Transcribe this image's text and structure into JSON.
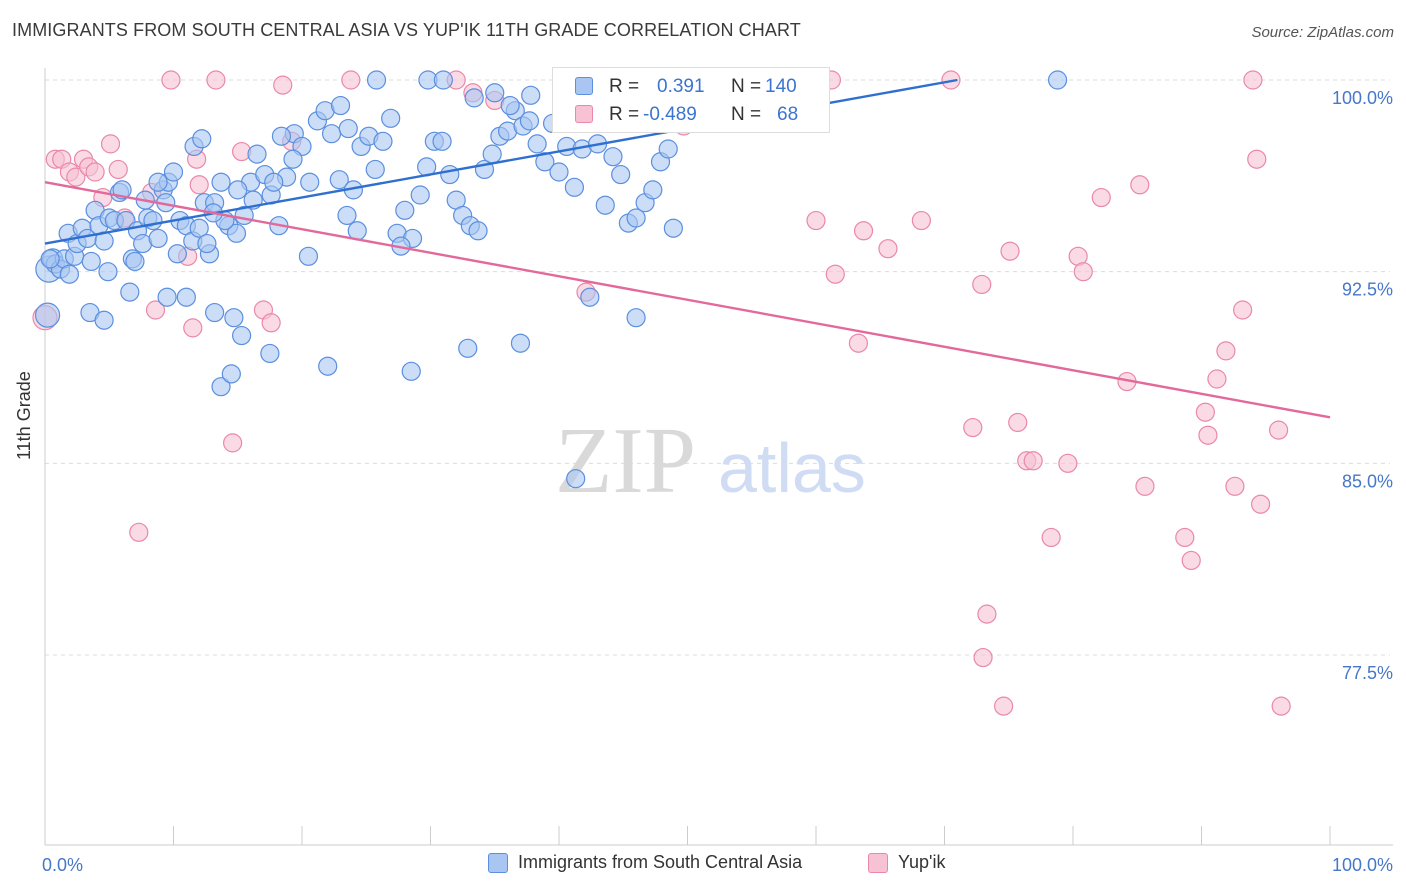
{
  "header": {
    "title": "IMMIGRANTS FROM SOUTH CENTRAL ASIA VS YUP'IK 11TH GRADE CORRELATION CHART",
    "source": "Source: ZipAtlas.com"
  },
  "watermark": {
    "zip": "ZIP",
    "atlas": "atlas"
  },
  "stats": {
    "rows": [
      {
        "r_label": "R =",
        "r_value": "0.391",
        "n_label": "N =",
        "n_value": "140",
        "color": "#6b9ee8"
      },
      {
        "r_label": "R =",
        "r_value": "-0.489",
        "n_label": "N =",
        "n_value": "68",
        "color": "#f29ab8"
      }
    ]
  },
  "colors": {
    "blue_fill": "#a9c6f2",
    "blue_stroke": "#5b8fdf",
    "blue_line": "#2f6fcf",
    "pink_fill": "#f7c2d4",
    "pink_stroke": "#ea88a9",
    "pink_line": "#e2699a",
    "tick_label": "#4677c9",
    "grid": "#dcdcdc"
  },
  "chart_data": {
    "type": "scatter",
    "title": "IMMIGRANTS FROM SOUTH CENTRAL ASIA VS YUP'IK 11TH GRADE CORRELATION CHART",
    "xlabel": "",
    "ylabel": "11th Grade",
    "xlim": [
      0,
      100
    ],
    "ylim": [
      70.2,
      100.6
    ],
    "x_tick_labels": [
      "0.0%",
      "100.0%"
    ],
    "y_ticks": [
      77.5,
      85.0,
      92.5,
      100.0
    ],
    "y_tick_labels": [
      "77.5%",
      "85.0%",
      "92.5%",
      "100.0%"
    ],
    "grid": "horizontal dashed",
    "legend": [
      "Immigrants from South Central Asia",
      "Yup'ik"
    ],
    "series": [
      {
        "name": "Immigrants from South Central Asia",
        "r": 0.391,
        "n": 140,
        "trend": {
          "x": [
            0,
            71
          ],
          "y": [
            93.6,
            100.0
          ]
        },
        "points": [
          [
            0.3,
            92.6
          ],
          [
            0.6,
            93.0
          ],
          [
            0.8,
            92.8
          ],
          [
            1.2,
            92.6
          ],
          [
            1.5,
            93.0
          ],
          [
            1.9,
            92.4
          ],
          [
            2.3,
            93.1
          ],
          [
            0.2,
            90.8
          ],
          [
            1.8,
            94.0
          ],
          [
            2.5,
            93.6
          ],
          [
            2.9,
            94.2
          ],
          [
            3.3,
            93.8
          ],
          [
            3.9,
            94.9
          ],
          [
            4.2,
            94.3
          ],
          [
            4.6,
            93.7
          ],
          [
            5.0,
            94.6
          ],
          [
            5.4,
            94.5
          ],
          [
            5.8,
            95.6
          ],
          [
            6.3,
            94.5
          ],
          [
            6.8,
            93.0
          ],
          [
            7.2,
            94.1
          ],
          [
            7.6,
            93.6
          ],
          [
            8.0,
            94.6
          ],
          [
            8.4,
            94.5
          ],
          [
            8.8,
            93.8
          ],
          [
            9.2,
            95.7
          ],
          [
            9.6,
            96.0
          ],
          [
            10.0,
            96.4
          ],
          [
            10.5,
            94.5
          ],
          [
            11.0,
            94.3
          ],
          [
            11.5,
            93.7
          ],
          [
            12.0,
            94.2
          ],
          [
            12.4,
            95.2
          ],
          [
            12.8,
            93.2
          ],
          [
            3.6,
            92.9
          ],
          [
            4.9,
            92.5
          ],
          [
            6.6,
            91.7
          ],
          [
            9.5,
            91.5
          ],
          [
            3.5,
            90.9
          ],
          [
            4.6,
            90.6
          ],
          [
            11.6,
            97.4
          ],
          [
            12.2,
            97.7
          ],
          [
            13.2,
            95.2
          ],
          [
            13.7,
            96.0
          ],
          [
            14.3,
            94.3
          ],
          [
            14.9,
            94.0
          ],
          [
            15.5,
            94.7
          ],
          [
            16.0,
            96.0
          ],
          [
            16.5,
            97.1
          ],
          [
            17.1,
            96.3
          ],
          [
            17.6,
            95.5
          ],
          [
            18.2,
            94.3
          ],
          [
            18.8,
            96.2
          ],
          [
            19.4,
            97.9
          ],
          [
            20.0,
            97.4
          ],
          [
            20.6,
            96.0
          ],
          [
            21.2,
            98.4
          ],
          [
            21.8,
            98.8
          ],
          [
            22.3,
            97.9
          ],
          [
            22.9,
            96.1
          ],
          [
            23.5,
            94.7
          ],
          [
            24.0,
            95.7
          ],
          [
            24.6,
            97.4
          ],
          [
            25.2,
            97.8
          ],
          [
            25.7,
            96.5
          ],
          [
            26.3,
            97.6
          ],
          [
            26.9,
            98.5
          ],
          [
            27.4,
            94.0
          ],
          [
            28.0,
            94.9
          ],
          [
            28.6,
            93.8
          ],
          [
            29.2,
            95.5
          ],
          [
            29.7,
            96.6
          ],
          [
            30.3,
            97.6
          ],
          [
            30.9,
            97.6
          ],
          [
            31.5,
            96.3
          ],
          [
            32.0,
            95.3
          ],
          [
            32.5,
            94.7
          ],
          [
            33.1,
            94.3
          ],
          [
            33.7,
            94.1
          ],
          [
            34.2,
            96.5
          ],
          [
            34.8,
            97.1
          ],
          [
            35.4,
            97.8
          ],
          [
            36.0,
            98.0
          ],
          [
            36.6,
            98.8
          ],
          [
            37.2,
            98.2
          ],
          [
            37.8,
            99.4
          ],
          [
            38.3,
            97.5
          ],
          [
            38.9,
            96.8
          ],
          [
            39.5,
            98.3
          ],
          [
            40.0,
            96.4
          ],
          [
            40.6,
            97.4
          ],
          [
            41.2,
            95.8
          ],
          [
            41.8,
            97.3
          ],
          [
            42.4,
            98.7
          ],
          [
            43.0,
            97.5
          ],
          [
            43.6,
            95.1
          ],
          [
            44.2,
            97.0
          ],
          [
            44.8,
            96.3
          ],
          [
            45.4,
            94.4
          ],
          [
            46.0,
            94.6
          ],
          [
            46.7,
            95.2
          ],
          [
            47.3,
            95.7
          ],
          [
            47.9,
            96.8
          ],
          [
            48.5,
            97.3
          ],
          [
            48.9,
            94.2
          ],
          [
            50.0,
            100.0
          ],
          [
            25.8,
            100.0
          ],
          [
            29.8,
            100.0
          ],
          [
            31.0,
            100.0
          ],
          [
            33.4,
            99.3
          ],
          [
            35.0,
            99.5
          ],
          [
            36.2,
            99.0
          ],
          [
            37.7,
            98.4
          ],
          [
            23.0,
            99.0
          ],
          [
            23.6,
            98.1
          ],
          [
            18.4,
            97.8
          ],
          [
            19.3,
            96.9
          ],
          [
            17.8,
            96.0
          ],
          [
            16.2,
            95.3
          ],
          [
            15.0,
            95.7
          ],
          [
            14.0,
            94.5
          ],
          [
            13.1,
            94.8
          ],
          [
            12.6,
            93.6
          ],
          [
            24.3,
            94.1
          ],
          [
            27.7,
            93.5
          ],
          [
            20.5,
            93.1
          ],
          [
            7.0,
            92.9
          ],
          [
            11.0,
            91.5
          ],
          [
            13.2,
            90.9
          ],
          [
            14.7,
            90.7
          ],
          [
            15.3,
            90.0
          ],
          [
            17.5,
            89.3
          ],
          [
            22.0,
            88.8
          ],
          [
            13.7,
            88.0
          ],
          [
            14.5,
            88.5
          ],
          [
            28.5,
            88.6
          ],
          [
            32.9,
            89.5
          ],
          [
            37.0,
            89.7
          ],
          [
            42.4,
            91.5
          ],
          [
            46.0,
            90.7
          ],
          [
            41.3,
            84.4
          ],
          [
            78.8,
            100.0
          ],
          [
            0.4,
            93.0
          ],
          [
            8.8,
            96.0
          ],
          [
            9.4,
            95.2
          ],
          [
            10.3,
            93.2
          ],
          [
            7.8,
            95.3
          ],
          [
            6.0,
            95.7
          ]
        ],
        "point_sizes": [
          26,
          20,
          18,
          18,
          18,
          18,
          18,
          24
        ]
      },
      {
        "name": "Yup'ik",
        "r": -0.489,
        "n": 68,
        "trend": {
          "x": [
            0,
            100
          ],
          "y": [
            96.0,
            86.8
          ]
        },
        "points": [
          [
            0.0,
            90.7
          ],
          [
            0.8,
            96.9
          ],
          [
            1.3,
            96.9
          ],
          [
            1.9,
            96.4
          ],
          [
            2.4,
            96.2
          ],
          [
            3.0,
            96.9
          ],
          [
            3.4,
            96.6
          ],
          [
            3.9,
            96.4
          ],
          [
            4.5,
            95.4
          ],
          [
            5.1,
            97.5
          ],
          [
            5.7,
            96.5
          ],
          [
            6.2,
            94.6
          ],
          [
            8.3,
            95.6
          ],
          [
            8.6,
            91.0
          ],
          [
            11.1,
            93.1
          ],
          [
            11.5,
            90.3
          ],
          [
            11.8,
            96.9
          ],
          [
            12.0,
            95.9
          ],
          [
            14.6,
            85.8
          ],
          [
            15.3,
            97.2
          ],
          [
            17.0,
            91.0
          ],
          [
            17.6,
            90.5
          ],
          [
            18.5,
            99.8
          ],
          [
            19.2,
            97.6
          ],
          [
            7.3,
            82.3
          ],
          [
            9.8,
            100.0
          ],
          [
            13.3,
            100.0
          ],
          [
            23.8,
            100.0
          ],
          [
            32.0,
            100.0
          ],
          [
            33.3,
            99.5
          ],
          [
            35.0,
            99.2
          ],
          [
            42.1,
            91.7
          ],
          [
            44.6,
            98.5
          ],
          [
            49.7,
            98.2
          ],
          [
            61.2,
            100.0
          ],
          [
            70.5,
            100.0
          ],
          [
            60.0,
            94.5
          ],
          [
            61.5,
            92.4
          ],
          [
            63.3,
            89.7
          ],
          [
            63.7,
            94.1
          ],
          [
            65.6,
            93.4
          ],
          [
            68.2,
            94.5
          ],
          [
            72.2,
            86.4
          ],
          [
            72.9,
            92.0
          ],
          [
            73.3,
            79.1
          ],
          [
            73.0,
            77.4
          ],
          [
            75.1,
            93.3
          ],
          [
            75.7,
            86.6
          ],
          [
            76.4,
            85.1
          ],
          [
            76.9,
            85.1
          ],
          [
            78.3,
            82.1
          ],
          [
            79.6,
            85.0
          ],
          [
            80.4,
            93.1
          ],
          [
            80.8,
            92.5
          ],
          [
            82.2,
            95.4
          ],
          [
            84.2,
            88.2
          ],
          [
            85.2,
            95.9
          ],
          [
            85.6,
            84.1
          ],
          [
            88.7,
            82.1
          ],
          [
            89.2,
            81.2
          ],
          [
            90.3,
            87.0
          ],
          [
            90.5,
            86.1
          ],
          [
            91.2,
            88.3
          ],
          [
            91.9,
            89.4
          ],
          [
            92.6,
            84.1
          ],
          [
            93.2,
            91.0
          ],
          [
            94.3,
            96.9
          ],
          [
            94.6,
            83.4
          ],
          [
            96.0,
            86.3
          ],
          [
            96.2,
            75.5
          ],
          [
            94.0,
            100.0
          ],
          [
            74.6,
            75.5
          ]
        ],
        "point_sizes": [
          24
        ]
      }
    ]
  },
  "legend_bottom": {
    "items": [
      {
        "label": "Immigrants from South Central Asia",
        "fill": "#a9c6f2",
        "stroke": "#5b8fdf"
      },
      {
        "label": "Yup'ik",
        "fill": "#f7c2d4",
        "stroke": "#ea88a9"
      }
    ]
  }
}
